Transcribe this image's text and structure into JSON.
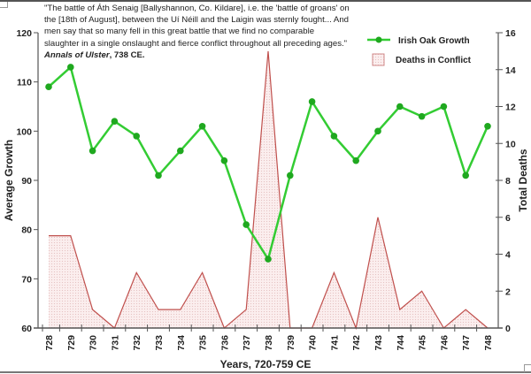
{
  "quote": {
    "lines": [
      "\"The battle of Áth Senaig [Ballyshannon, Co. Kildare], i.e. the 'battle of groans' on",
      "the [18th of August], between the Uí Néill and the Laigin was sternly fought... And",
      "men say that so many fell in this great battle that we find no comparable",
      "slaughter in a single onslaught and fierce conflict throughout all preceding ages.\""
    ],
    "source_title": "Annals of Ulster",
    "source_suffix": ", 738 CE."
  },
  "legend": {
    "growth_label": "Irish Oak Growth",
    "deaths_label": "Deaths in Conflict"
  },
  "axes": {
    "left_title": "Average Growth",
    "right_title": "Total Deaths",
    "x_title": "Years, 720-759 CE"
  },
  "colors": {
    "growth_line": "#33cc33",
    "growth_marker": "#1fa81f",
    "deaths_line": "#c0504d",
    "deaths_fill": "#f7e1e1",
    "axis": "#777777"
  },
  "chart_data": {
    "type": "line",
    "title": "",
    "xlabel": "Years, 720-759 CE",
    "ylabel": "Average Growth",
    "y2label": "Total Deaths",
    "ylim": [
      60,
      120
    ],
    "y2lim": [
      0,
      16
    ],
    "yticks": [
      60,
      70,
      80,
      90,
      100,
      110,
      120
    ],
    "y2ticks": [
      0,
      2,
      4,
      6,
      8,
      10,
      12,
      14,
      16
    ],
    "categories": [
      "728",
      "729",
      "730",
      "731",
      "732",
      "733",
      "734",
      "735",
      "736",
      "737",
      "738",
      "739",
      "740",
      "741",
      "742",
      "743",
      "744",
      "745",
      "746",
      "747",
      "748"
    ],
    "series": [
      {
        "name": "Irish Oak Growth",
        "axis": "left",
        "style": "line-with-markers",
        "values": [
          109,
          113,
          96,
          102,
          99,
          91,
          96,
          101,
          94,
          81,
          74,
          91,
          106,
          99,
          94,
          100,
          105,
          103,
          105,
          91,
          101
        ]
      },
      {
        "name": "Deaths in Conflict",
        "axis": "right",
        "style": "area",
        "values": [
          5,
          5,
          1,
          0,
          3,
          1,
          1,
          3,
          0,
          1,
          15,
          0,
          0,
          3,
          0,
          6,
          1,
          2,
          0,
          1,
          0
        ]
      }
    ],
    "legend_position": "top-right",
    "grid": false
  }
}
